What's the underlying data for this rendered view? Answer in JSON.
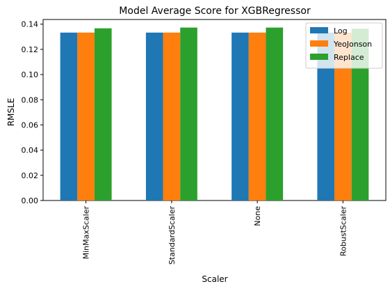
{
  "chart_data": {
    "type": "bar",
    "title": "Model Average Score for XGBRegressor",
    "xlabel": "Scaler",
    "ylabel": "RMSLE",
    "categories": [
      "MinMaxScaler",
      "StandardScaler",
      "None",
      "RobustScaler"
    ],
    "series": [
      {
        "name": "Log",
        "color": "#1f77b4",
        "values": [
          0.1333,
          0.1333,
          0.1333,
          0.1333
        ]
      },
      {
        "name": "YeoJonson",
        "color": "#ff7f0e",
        "values": [
          0.1333,
          0.1333,
          0.1333,
          0.1333
        ]
      },
      {
        "name": "Replace",
        "color": "#2ca02c",
        "values": [
          0.1367,
          0.1373,
          0.1373,
          0.1364
        ]
      }
    ],
    "ylim": [
      0,
      0.1437
    ],
    "yticks": [
      "0.00",
      "0.02",
      "0.04",
      "0.06",
      "0.08",
      "0.10",
      "0.12",
      "0.14"
    ],
    "legend_position": "top-right",
    "grid": false
  }
}
